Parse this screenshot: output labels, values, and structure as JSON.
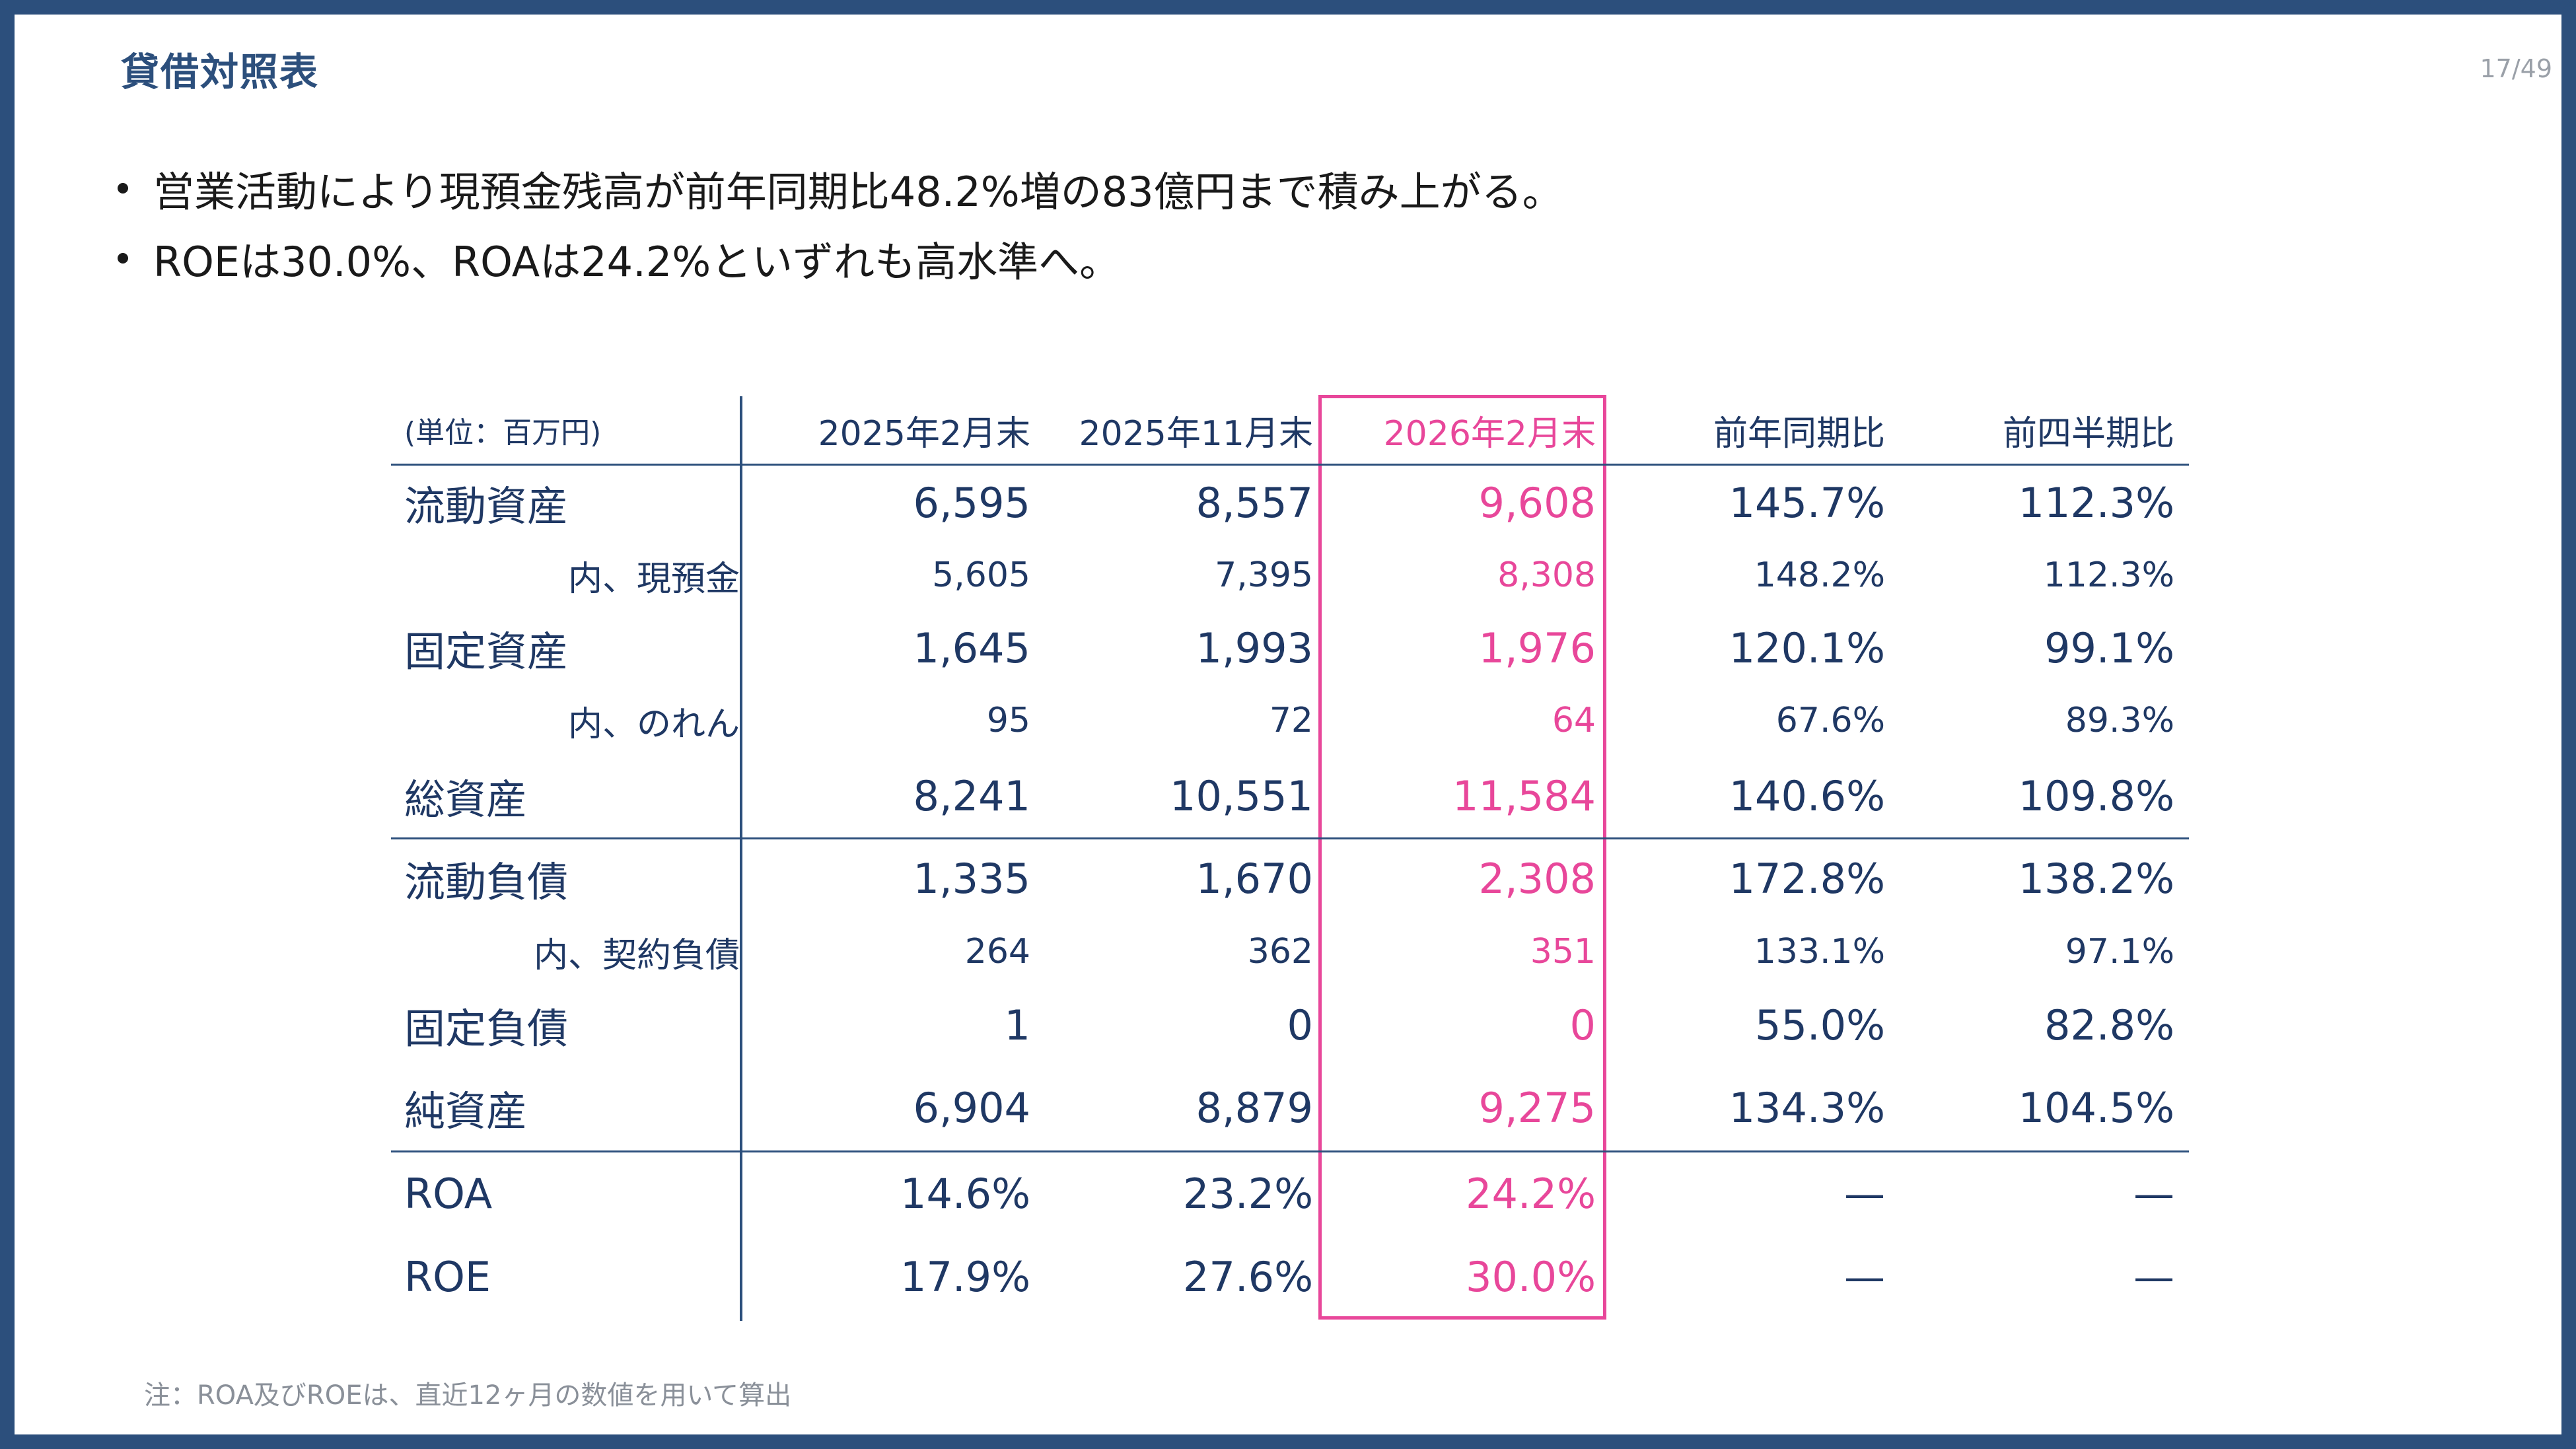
{
  "page": {
    "title": "貸借対照表",
    "page_number": "17/49"
  },
  "bullets": [
    "営業活動により現預金残高が前年同期比48.2%増の83億円まで積み上がる。",
    "ROEは30.0%、ROAは24.2%といずれも高水準へ。"
  ],
  "table": {
    "headers": [
      "(単位：百万円)",
      "2025年2月末",
      "2025年11月末",
      "2026年2月末",
      "前年同期比",
      "前四半期比"
    ],
    "rows": [
      [
        "流動資産",
        "6,595",
        "8,557",
        "9,608",
        "145.7%",
        "112.3%"
      ],
      [
        "内、現預金",
        "5,605",
        "7,395",
        "8,308",
        "148.2%",
        "112.3%"
      ],
      [
        "固定資産",
        "1,645",
        "1,993",
        "1,976",
        "120.1%",
        "99.1%"
      ],
      [
        "内、のれん",
        "95",
        "72",
        "64",
        "67.6%",
        "89.3%"
      ],
      [
        "総資産",
        "8,241",
        "10,551",
        "11,584",
        "140.6%",
        "109.8%"
      ],
      [
        "流動負債",
        "1,335",
        "1,670",
        "2,308",
        "172.8%",
        "138.2%"
      ],
      [
        "内、契約負債",
        "264",
        "362",
        "351",
        "133.1%",
        "97.1%"
      ],
      [
        "固定負債",
        "1",
        "0",
        "0",
        "55.0%",
        "82.8%"
      ],
      [
        "純資産",
        "6,904",
        "8,879",
        "9,275",
        "134.3%",
        "104.5%"
      ],
      [
        "ROA",
        "14.6%",
        "23.2%",
        "24.2%",
        "—",
        "—"
      ],
      [
        "ROE",
        "17.9%",
        "27.6%",
        "30.0%",
        "—",
        "—"
      ]
    ]
  },
  "note": "注：ROA及びROEは、直近12ヶ月の数値を用いて算出",
  "colors": {
    "frame": "#2c4f7c",
    "text": "#1f3864",
    "highlight": "#e8479a"
  }
}
